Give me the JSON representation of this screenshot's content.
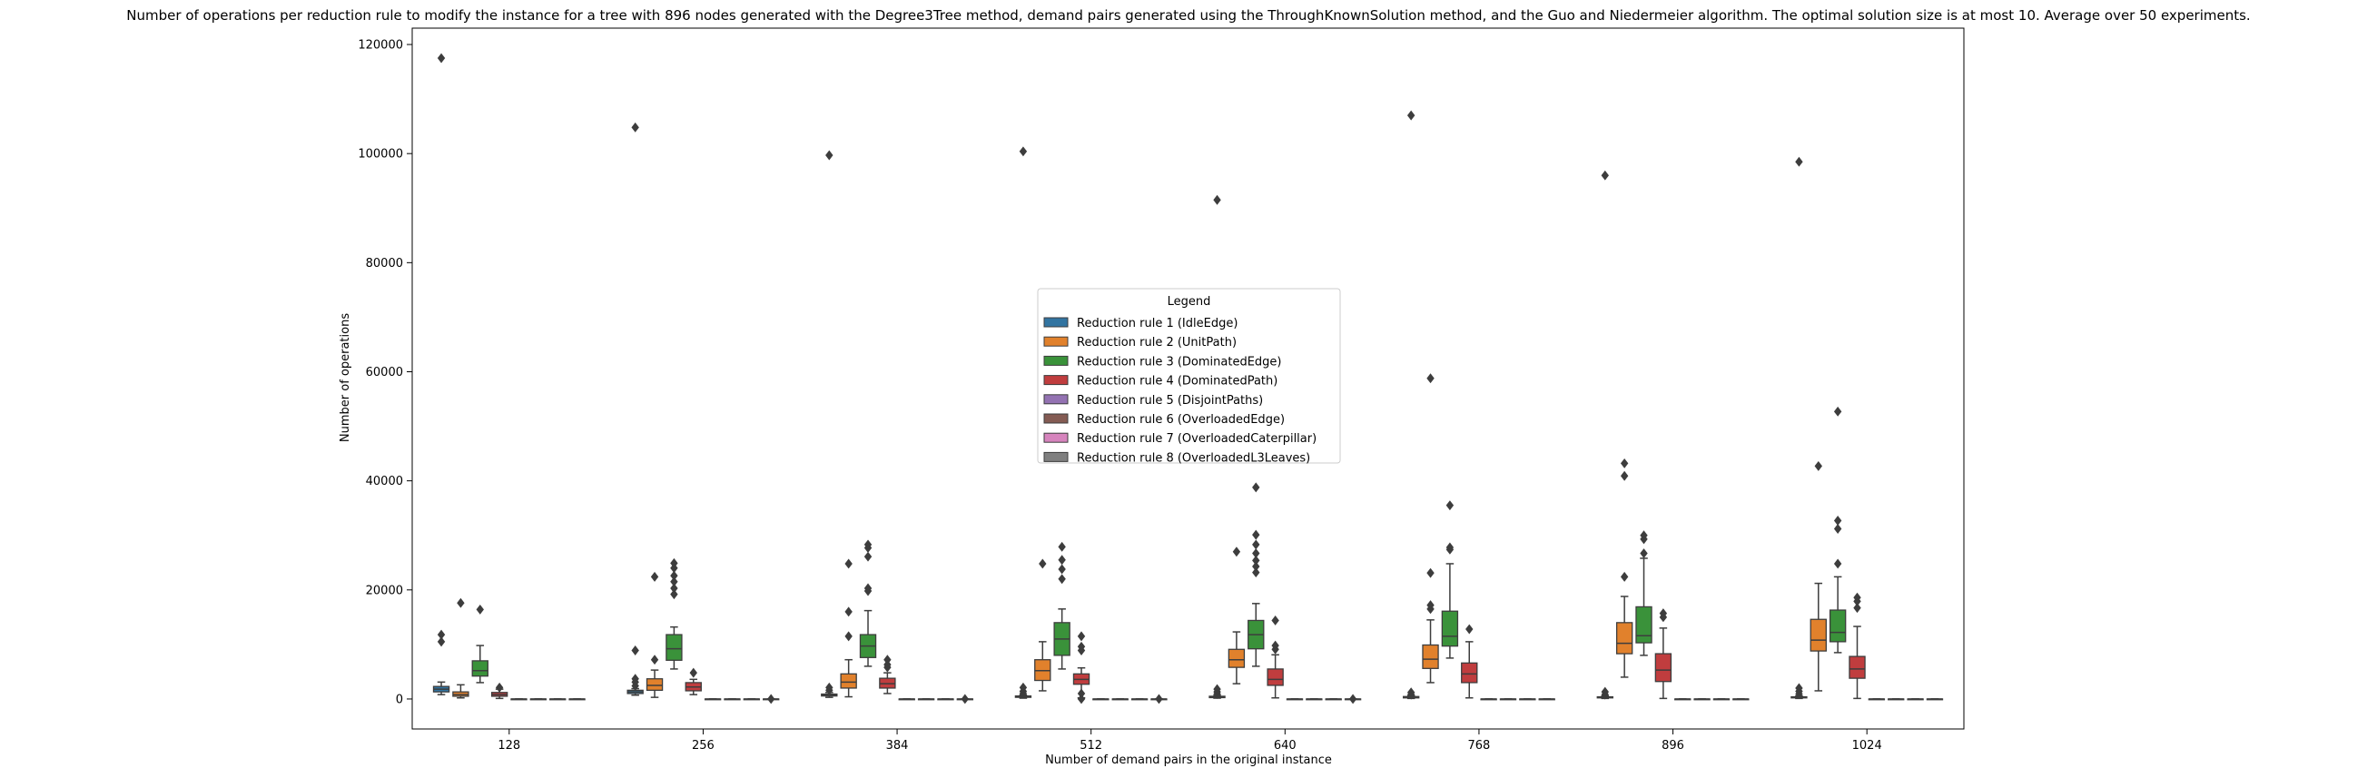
{
  "chart_data": {
    "type": "box",
    "title": "Number of operations per reduction rule to modify the instance for a tree with 896 nodes generated with the Degree3Tree method, demand pairs generated using the ThroughKnownSolution method, and the Guo and Niedermeier algorithm. The optimal solution size is at most 10. Average over 50 experiments.",
    "xlabel": "Number of demand pairs in the original instance",
    "ylabel": "Number of operations",
    "categories": [
      "128",
      "256",
      "384",
      "512",
      "640",
      "768",
      "896",
      "1024"
    ],
    "ylim": [
      -5500,
      123000
    ],
    "yticks": [
      0,
      20000,
      40000,
      60000,
      80000,
      100000,
      120000
    ],
    "ytick_labels": [
      "0",
      "20000",
      "40000",
      "60000",
      "80000",
      "100000",
      "120000"
    ],
    "grid": false,
    "legend": {
      "title": "Legend",
      "placement": "center"
    },
    "series": [
      {
        "name": "Reduction rule 1 (IdleEdge)",
        "color": "#3274a1",
        "boxes": [
          {
            "min": 800,
            "q1": 1300,
            "median": 1800,
            "q3": 2300,
            "max": 3100,
            "outliers": [
              10500,
              11800,
              117500
            ]
          },
          {
            "min": 700,
            "q1": 1000,
            "median": 1300,
            "q3": 1600,
            "max": 1900,
            "outliers": [
              2400,
              3100,
              3700,
              8900,
              104800
            ]
          },
          {
            "min": 300,
            "q1": 550,
            "median": 700,
            "q3": 900,
            "max": 1200,
            "outliers": [
              1600,
              2100,
              99700
            ]
          },
          {
            "min": 150,
            "q1": 300,
            "median": 400,
            "q3": 550,
            "max": 700,
            "outliers": [
              1000,
              1400,
              2100,
              100400
            ]
          },
          {
            "min": 150,
            "q1": 250,
            "median": 350,
            "q3": 500,
            "max": 650,
            "outliers": [
              900,
              1300,
              1800,
              91500
            ]
          },
          {
            "min": 100,
            "q1": 200,
            "median": 300,
            "q3": 450,
            "max": 600,
            "outliers": [
              800,
              1200,
              107000
            ]
          },
          {
            "min": 100,
            "q1": 200,
            "median": 300,
            "q3": 400,
            "max": 550,
            "outliers": [
              800,
              1300,
              96000
            ]
          },
          {
            "min": 100,
            "q1": 200,
            "median": 300,
            "q3": 400,
            "max": 550,
            "outliers": [
              900,
              1400,
              2000,
              98500
            ]
          }
        ]
      },
      {
        "name": "Reduction rule 2 (UnitPath)",
        "color": "#e1812c",
        "boxes": [
          {
            "min": 200,
            "q1": 500,
            "median": 800,
            "q3": 1300,
            "max": 2600,
            "outliers": [
              17600
            ]
          },
          {
            "min": 300,
            "q1": 1600,
            "median": 2500,
            "q3": 3700,
            "max": 5300,
            "outliers": [
              7200,
              22400
            ]
          },
          {
            "min": 400,
            "q1": 2000,
            "median": 3100,
            "q3": 4600,
            "max": 7200,
            "outliers": [
              11500,
              16000,
              24800
            ]
          },
          {
            "min": 1500,
            "q1": 3400,
            "median": 5200,
            "q3": 7200,
            "max": 10500,
            "outliers": [
              24800
            ]
          },
          {
            "min": 2800,
            "q1": 5800,
            "median": 7200,
            "q3": 9100,
            "max": 12300,
            "outliers": [
              27000
            ]
          },
          {
            "min": 3000,
            "q1": 5600,
            "median": 7300,
            "q3": 9900,
            "max": 14500,
            "outliers": [
              16500,
              17200,
              23100,
              58800
            ]
          },
          {
            "min": 4000,
            "q1": 8300,
            "median": 10200,
            "q3": 14000,
            "max": 18800,
            "outliers": [
              22400,
              40900,
              43200
            ]
          },
          {
            "min": 1500,
            "q1": 8800,
            "median": 10800,
            "q3": 14600,
            "max": 21200,
            "outliers": [
              42700
            ]
          }
        ]
      },
      {
        "name": "Reduction rule 3 (DominatedEdge)",
        "color": "#3a923a",
        "boxes": [
          {
            "min": 3000,
            "q1": 4200,
            "median": 5200,
            "q3": 7000,
            "max": 9800,
            "outliers": [
              16400
            ]
          },
          {
            "min": 5500,
            "q1": 7100,
            "median": 9200,
            "q3": 11800,
            "max": 13200,
            "outliers": [
              19200,
              20300,
              21500,
              22600,
              24000,
              24900
            ]
          },
          {
            "min": 6000,
            "q1": 7600,
            "median": 9700,
            "q3": 11800,
            "max": 16200,
            "outliers": [
              19800,
              20300,
              26100,
              27700,
              28300
            ]
          },
          {
            "min": 5500,
            "q1": 8000,
            "median": 11000,
            "q3": 14000,
            "max": 16500,
            "outliers": [
              22000,
              23800,
              25500,
              27900
            ]
          },
          {
            "min": 6000,
            "q1": 9200,
            "median": 11800,
            "q3": 14400,
            "max": 17500,
            "outliers": [
              23200,
              24300,
              25400,
              26700,
              28300,
              30100,
              38800
            ]
          },
          {
            "min": 7500,
            "q1": 9700,
            "median": 11500,
            "q3": 16100,
            "max": 24800,
            "outliers": [
              27400,
              27800,
              35500
            ]
          },
          {
            "min": 8000,
            "q1": 10300,
            "median": 11600,
            "q3": 16900,
            "max": 25800,
            "outliers": [
              26700,
              29300,
              30000
            ]
          },
          {
            "min": 8500,
            "q1": 10500,
            "median": 12200,
            "q3": 16300,
            "max": 22400,
            "outliers": [
              24800,
              31200,
              32700,
              52700
            ]
          }
        ]
      },
      {
        "name": "Reduction rule 4 (DominatedPath)",
        "color": "#c03d3e",
        "boxes": [
          {
            "min": 100,
            "q1": 500,
            "median": 800,
            "q3": 1200,
            "max": 1800,
            "outliers": [
              2100
            ]
          },
          {
            "min": 800,
            "q1": 1500,
            "median": 2200,
            "q3": 3000,
            "max": 3600,
            "outliers": [
              4800
            ]
          },
          {
            "min": 1000,
            "q1": 2000,
            "median": 2800,
            "q3": 3800,
            "max": 4800,
            "outliers": [
              5800,
              6300,
              7200
            ]
          },
          {
            "min": 200,
            "q1": 2700,
            "median": 3600,
            "q3": 4600,
            "max": 5700,
            "outliers": [
              0,
              1000,
              8900,
              9600,
              11500
            ]
          },
          {
            "min": 200,
            "q1": 2500,
            "median": 3600,
            "q3": 5500,
            "max": 8100,
            "outliers": [
              9100,
              9800,
              14400
            ]
          },
          {
            "min": 200,
            "q1": 3000,
            "median": 4600,
            "q3": 6600,
            "max": 10500,
            "outliers": [
              12800
            ]
          },
          {
            "min": 100,
            "q1": 3200,
            "median": 5300,
            "q3": 8300,
            "max": 13000,
            "outliers": [
              15000,
              15700
            ]
          },
          {
            "min": 100,
            "q1": 3800,
            "median": 5500,
            "q3": 7800,
            "max": 13300,
            "outliers": [
              16700,
              17900,
              18600
            ]
          }
        ]
      },
      {
        "name": "Reduction rule 5 (DisjointPaths)",
        "color": "#9372b2",
        "boxes": [
          {
            "min": 0,
            "q1": 0,
            "median": 0,
            "q3": 0,
            "max": 0,
            "outliers": []
          },
          {
            "min": 0,
            "q1": 0,
            "median": 0,
            "q3": 0,
            "max": 0,
            "outliers": []
          },
          {
            "min": 0,
            "q1": 0,
            "median": 0,
            "q3": 0,
            "max": 0,
            "outliers": []
          },
          {
            "min": 0,
            "q1": 0,
            "median": 0,
            "q3": 0,
            "max": 0,
            "outliers": []
          },
          {
            "min": 0,
            "q1": 0,
            "median": 0,
            "q3": 0,
            "max": 0,
            "outliers": []
          },
          {
            "min": 0,
            "q1": 0,
            "median": 0,
            "q3": 0,
            "max": 0,
            "outliers": []
          },
          {
            "min": 0,
            "q1": 0,
            "median": 0,
            "q3": 0,
            "max": 0,
            "outliers": []
          },
          {
            "min": 0,
            "q1": 0,
            "median": 0,
            "q3": 0,
            "max": 0,
            "outliers": []
          }
        ]
      },
      {
        "name": "Reduction rule 6 (OverloadedEdge)",
        "color": "#845b53",
        "boxes": [
          {
            "min": 0,
            "q1": 0,
            "median": 0,
            "q3": 0,
            "max": 0,
            "outliers": []
          },
          {
            "min": 0,
            "q1": 0,
            "median": 0,
            "q3": 0,
            "max": 0,
            "outliers": []
          },
          {
            "min": 0,
            "q1": 0,
            "median": 0,
            "q3": 0,
            "max": 0,
            "outliers": []
          },
          {
            "min": 0,
            "q1": 0,
            "median": 0,
            "q3": 0,
            "max": 0,
            "outliers": []
          },
          {
            "min": 0,
            "q1": 0,
            "median": 0,
            "q3": 0,
            "max": 0,
            "outliers": []
          },
          {
            "min": 0,
            "q1": 0,
            "median": 0,
            "q3": 0,
            "max": 0,
            "outliers": []
          },
          {
            "min": 0,
            "q1": 0,
            "median": 0,
            "q3": 0,
            "max": 0,
            "outliers": []
          },
          {
            "min": 0,
            "q1": 0,
            "median": 0,
            "q3": 0,
            "max": 0,
            "outliers": []
          }
        ]
      },
      {
        "name": "Reduction rule 7 (OverloadedCaterpillar)",
        "color": "#d684bd",
        "boxes": [
          {
            "min": 0,
            "q1": 0,
            "median": 0,
            "q3": 0,
            "max": 0,
            "outliers": []
          },
          {
            "min": 0,
            "q1": 0,
            "median": 0,
            "q3": 0,
            "max": 0,
            "outliers": []
          },
          {
            "min": 0,
            "q1": 0,
            "median": 0,
            "q3": 0,
            "max": 0,
            "outliers": []
          },
          {
            "min": 0,
            "q1": 0,
            "median": 0,
            "q3": 0,
            "max": 0,
            "outliers": []
          },
          {
            "min": 0,
            "q1": 0,
            "median": 0,
            "q3": 0,
            "max": 0,
            "outliers": []
          },
          {
            "min": 0,
            "q1": 0,
            "median": 0,
            "q3": 0,
            "max": 0,
            "outliers": []
          },
          {
            "min": 0,
            "q1": 0,
            "median": 0,
            "q3": 0,
            "max": 0,
            "outliers": []
          },
          {
            "min": 0,
            "q1": 0,
            "median": 0,
            "q3": 0,
            "max": 0,
            "outliers": []
          }
        ]
      },
      {
        "name": "Reduction rule 8 (OverloadedL3Leaves)",
        "color": "#7f7f7f",
        "boxes": [
          {
            "min": 0,
            "q1": 0,
            "median": 0,
            "q3": 0,
            "max": 0,
            "outliers": []
          },
          {
            "min": 0,
            "q1": 0,
            "median": 0,
            "q3": 0,
            "max": 0,
            "outliers": [
              0
            ]
          },
          {
            "min": 0,
            "q1": 0,
            "median": 0,
            "q3": 0,
            "max": 0,
            "outliers": [
              0
            ]
          },
          {
            "min": 0,
            "q1": 0,
            "median": 0,
            "q3": 0,
            "max": 0,
            "outliers": [
              0
            ]
          },
          {
            "min": 0,
            "q1": 0,
            "median": 0,
            "q3": 0,
            "max": 0,
            "outliers": [
              0
            ]
          },
          {
            "min": 0,
            "q1": 0,
            "median": 0,
            "q3": 0,
            "max": 0,
            "outliers": []
          },
          {
            "min": 0,
            "q1": 0,
            "median": 0,
            "q3": 0,
            "max": 0,
            "outliers": []
          },
          {
            "min": 0,
            "q1": 0,
            "median": 0,
            "q3": 0,
            "max": 0,
            "outliers": []
          }
        ]
      }
    ]
  }
}
